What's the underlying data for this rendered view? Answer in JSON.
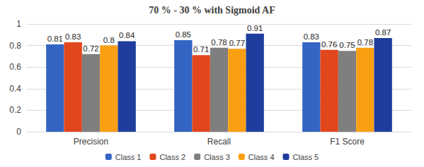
{
  "chart_data": {
    "type": "bar",
    "title": "70 % - 30 % with Sigmoid AF",
    "categories": [
      "Precision",
      "Recall",
      "F1 Score"
    ],
    "series": [
      {
        "name": "Class 1",
        "color": "#3465c4",
        "values": [
          0.81,
          0.85,
          0.83
        ]
      },
      {
        "name": "Class 2",
        "color": "#e2461c",
        "values": [
          0.83,
          0.71,
          0.76
        ]
      },
      {
        "name": "Class 3",
        "color": "#7f7f7f",
        "values": [
          0.72,
          0.78,
          0.75
        ]
      },
      {
        "name": "Class 4",
        "color": "#fb9f12",
        "values": [
          0.8,
          0.77,
          0.78
        ]
      },
      {
        "name": "Class 5",
        "color": "#1f3d9c",
        "values": [
          0.84,
          0.91,
          0.87
        ]
      }
    ],
    "ylim": [
      0,
      1
    ],
    "yticks": [
      0,
      0.2,
      0.4,
      0.6,
      0.8,
      1
    ],
    "grid": true,
    "legend": "bottom",
    "data_labels": true
  }
}
